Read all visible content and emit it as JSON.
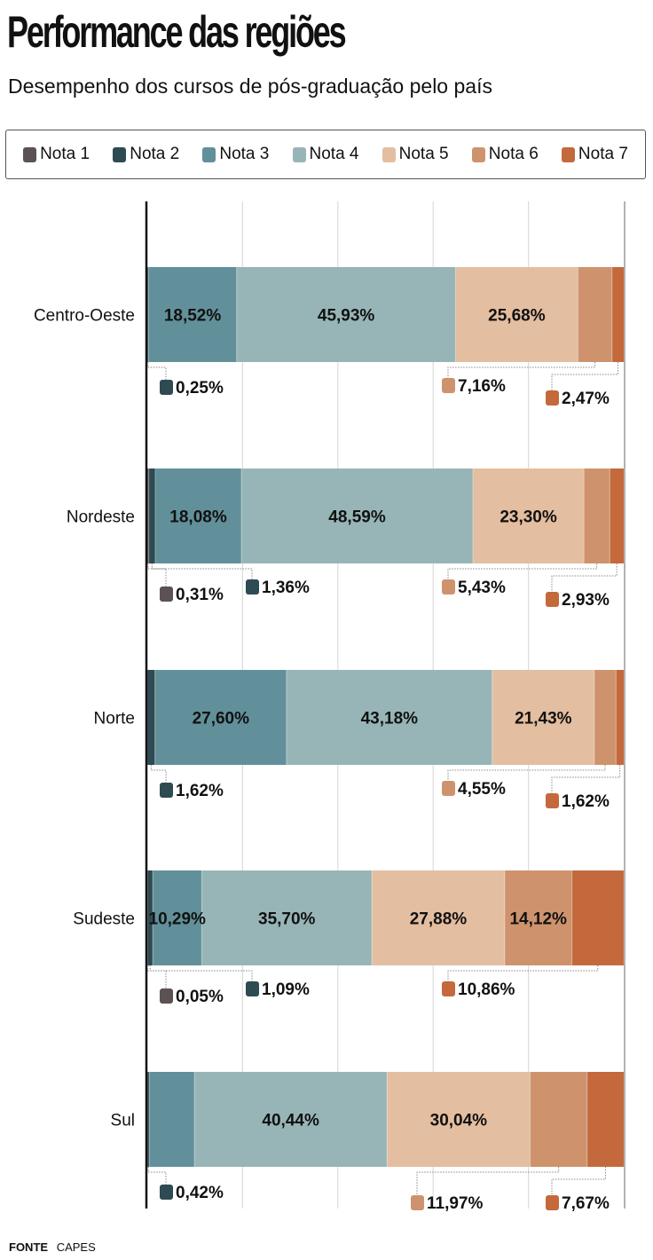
{
  "header": {
    "title": "Performance das regiões",
    "subtitle": "Desempenho dos cursos de pós-graduação pelo país"
  },
  "footer": {
    "label": "FONTE",
    "source": "CAPES"
  },
  "chart_data": {
    "type": "bar",
    "orientation": "horizontal",
    "stacked": true,
    "title": "Performance das regiões",
    "subtitle": "Desempenho dos cursos de pós-graduação pelo país",
    "categories": [
      "Centro-Oeste",
      "Nordeste",
      "Norte",
      "Sudeste",
      "Sul"
    ],
    "xlim": [
      0,
      100
    ],
    "grid": true,
    "legend_position": "top",
    "series": [
      {
        "name": "Nota 1",
        "color": "#5c5254",
        "values": [
          0,
          0.31,
          0,
          0.05,
          0
        ]
      },
      {
        "name": "Nota 2",
        "color": "#2e4a52",
        "values": [
          0.25,
          1.36,
          1.62,
          1.09,
          0.42
        ]
      },
      {
        "name": "Nota 3",
        "color": "#61909a",
        "values": [
          18.52,
          18.08,
          27.6,
          10.29,
          9.46
        ]
      },
      {
        "name": "Nota 4",
        "color": "#97b5b7",
        "values": [
          45.93,
          48.59,
          43.18,
          35.7,
          40.44
        ]
      },
      {
        "name": "Nota 5",
        "color": "#e4bea0",
        "values": [
          25.68,
          23.3,
          21.43,
          27.88,
          30.04
        ]
      },
      {
        "name": "Nota 6",
        "color": "#ce936d",
        "values": [
          7.16,
          5.43,
          4.55,
          14.12,
          11.97
        ]
      },
      {
        "name": "Nota 7",
        "color": "#c4693c",
        "values": [
          2.47,
          2.93,
          1.62,
          10.86,
          7.67
        ]
      }
    ],
    "inside_labels": [
      [
        null,
        null,
        "18,52%",
        "45,93%",
        "25,68%",
        null,
        null
      ],
      [
        null,
        null,
        "18,08%",
        "48,59%",
        "23,30%",
        null,
        null
      ],
      [
        null,
        null,
        "27,60%",
        "43,18%",
        "21,43%",
        null,
        null
      ],
      [
        null,
        null,
        "10,29%",
        "35,70%",
        "27,88%",
        "14,12%",
        null
      ],
      [
        null,
        null,
        null,
        "40,44%",
        "30,04%",
        null,
        null
      ]
    ],
    "callouts": [
      [
        {
          "series": 1,
          "text": "0,25%",
          "slot": 0
        },
        {
          "series": 5,
          "text": "7,16%",
          "slot": 2
        },
        {
          "series": 6,
          "text": "2,47%",
          "slot": 3
        }
      ],
      [
        {
          "series": 0,
          "text": "0,31%",
          "slot": 0
        },
        {
          "series": 1,
          "text": "1,36%",
          "slot": 1
        },
        {
          "series": 5,
          "text": "5,43%",
          "slot": 2
        },
        {
          "series": 6,
          "text": "2,93%",
          "slot": 3
        }
      ],
      [
        {
          "series": 1,
          "text": "1,62%",
          "slot": 0
        },
        {
          "series": 5,
          "text": "4,55%",
          "slot": 2
        },
        {
          "series": 6,
          "text": "1,62%",
          "slot": 3
        }
      ],
      [
        {
          "series": 0,
          "text": "0,05%",
          "slot": 0
        },
        {
          "series": 1,
          "text": "1,09%",
          "slot": 1
        },
        {
          "series": 6,
          "text": "10,86%",
          "slot": 2
        }
      ],
      [
        {
          "series": 1,
          "text": "0,42%",
          "slot": 0
        },
        {
          "series": 5,
          "text": "11,97%",
          "slot": 4
        },
        {
          "series": 6,
          "text": "7,67%",
          "slot": 3
        }
      ]
    ]
  }
}
